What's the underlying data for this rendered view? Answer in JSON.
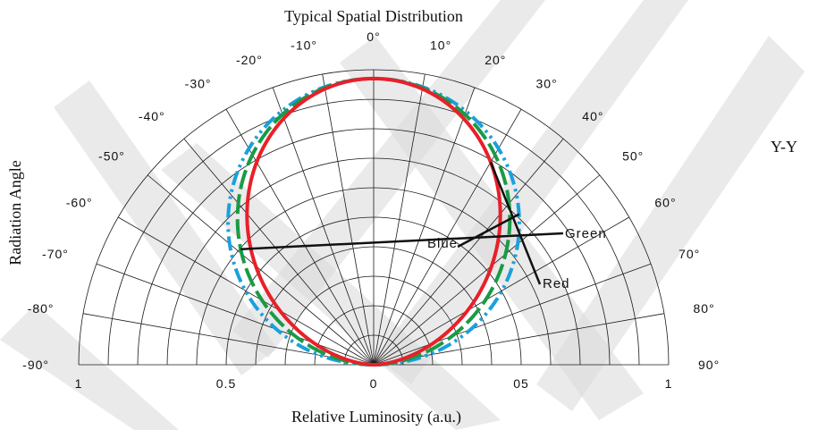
{
  "chart_data": {
    "type": "polar-line",
    "title": "Typical Spatial Distribution",
    "ylabel": "Radiation  Angle",
    "xlabel": "Relative Luminosity (a.u.)",
    "side_label": "Y-Y",
    "angle_range": [
      -90,
      90
    ],
    "radius_range": [
      0,
      1
    ],
    "grid": true,
    "angle_ticks": [
      "-90°",
      "-80°",
      "-70°",
      "-60°",
      "-50°",
      "-40°",
      "-30°",
      "-20°",
      "-10°",
      "0°",
      "10°",
      "20°",
      "30°",
      "40°",
      "50°",
      "60°",
      "70°",
      "80°",
      "90°"
    ],
    "radial_ticks": [
      {
        "value": -1,
        "label": "1"
      },
      {
        "value": -0.5,
        "label": "0.5"
      },
      {
        "value": 0,
        "label": "0"
      },
      {
        "value": 0.5,
        "label": "05"
      },
      {
        "value": 1,
        "label": "1"
      }
    ],
    "series": [
      {
        "name": "Red",
        "color": "#e8202a",
        "style": "solid",
        "cos_power": 1.4,
        "peak": 0.97,
        "annotation_angle": 30
      },
      {
        "name": "Green",
        "color": "#1a9a46",
        "style": "dash",
        "cos_power": 1.15,
        "peak": 0.97,
        "annotation_angle": -49
      },
      {
        "name": "Blue",
        "color": "#1aa0de",
        "style": "dash-dot-dot",
        "cos_power": 0.95,
        "peak": 0.97,
        "annotation_angle": -44
      }
    ]
  }
}
